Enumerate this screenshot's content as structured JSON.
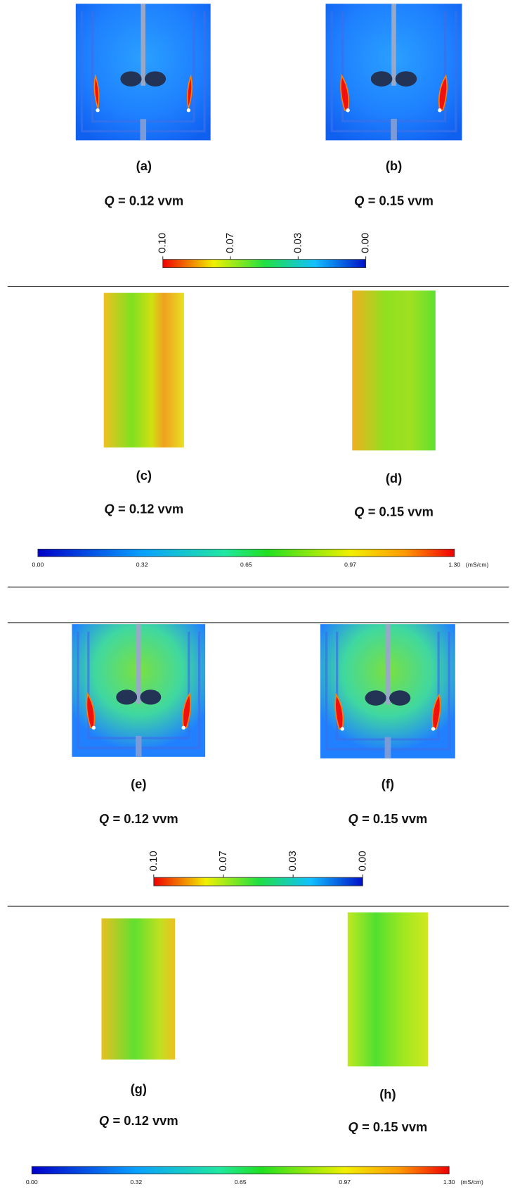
{
  "panels": [
    {
      "label": "(a)",
      "q_var": "Q",
      "q_text": "= 0.12 vvm"
    },
    {
      "label": "(b)",
      "q_var": "Q",
      "q_text": "= 0.15 vvm"
    },
    {
      "label": "(c)",
      "q_var": "Q",
      "q_text": "= 0.12 vvm"
    },
    {
      "label": "(d)",
      "q_var": "Q",
      "q_text": "= 0.15 vvm"
    },
    {
      "label": "(e)",
      "q_var": "Q",
      "q_text": "= 0.12 vvm"
    },
    {
      "label": "(f)",
      "q_var": "Q",
      "q_text": "= 0.15 vvm"
    },
    {
      "label": "(g)",
      "q_var": "Q",
      "q_text": "= 0.12 vvm"
    },
    {
      "label": "(h)",
      "q_var": "Q",
      "q_text": "= 0.15 vvm"
    }
  ],
  "colorbars": [
    {
      "ticks": [
        "0.10",
        "0.07",
        "0.03",
        "0.00"
      ]
    },
    {
      "ticks": [
        "0.00",
        "0.32",
        "0.65",
        "0.97",
        "1.30"
      ],
      "unit": "(mS/cm)"
    },
    {
      "ticks": [
        "0.10",
        "0.07",
        "0.03",
        "0.00"
      ]
    },
    {
      "ticks": [
        "0.00",
        "0.32",
        "0.65",
        "0.97",
        "1.30"
      ],
      "unit": "(mS/cm)"
    }
  ]
}
